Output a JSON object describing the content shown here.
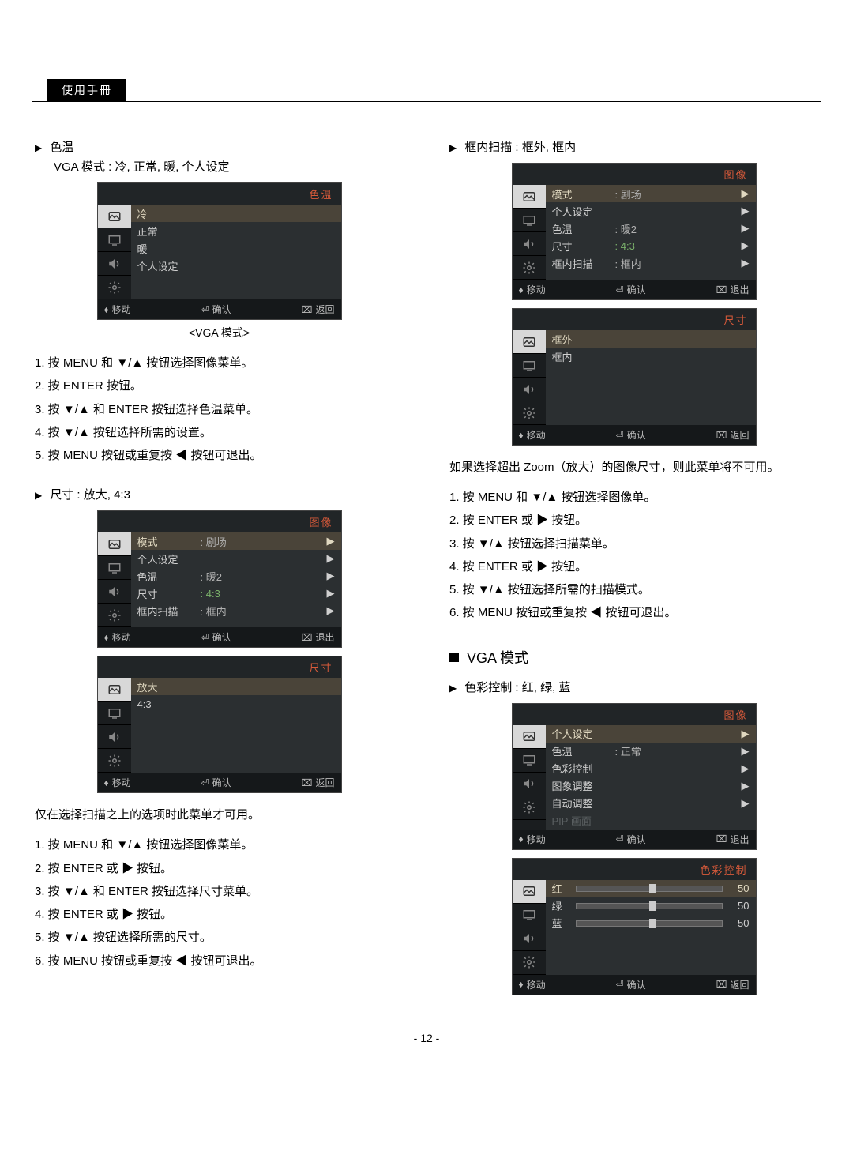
{
  "manual_label": "使用手冊",
  "page_number": "- 12 -",
  "col_left": {
    "sec1": {
      "bullet": "色温",
      "sub": "VGA 模式 : 冷, 正常, 暖, 个人设定",
      "osd": {
        "title": "色温",
        "rows": [
          "冷",
          "正常",
          "暖",
          "个人设定"
        ],
        "selected": 0,
        "footer": {
          "move": "移动",
          "ok": "确认",
          "back": "返回"
        }
      },
      "caption": "<VGA  模式>",
      "steps": [
        "1.  按 MENU 和 ▼/▲ 按钮选择图像菜单。",
        "2.  按 ENTER 按钮。",
        "3.  按 ▼/▲ 和 ENTER 按钮选择色温菜单。",
        "4.  按 ▼/▲ 按钮选择所需的设置。",
        "5.  按 MENU 按钮或重复按 ◀ 按钮可退出。"
      ]
    },
    "sec2": {
      "bullet": "尺寸 : 放大,  4:3",
      "osd_image": {
        "title": "图像",
        "rows": [
          {
            "lbl": "模式",
            "val": ":  剧场",
            "arrow": true,
            "sel": true
          },
          {
            "lbl": "个人设定",
            "val": "",
            "arrow": true
          },
          {
            "lbl": "色温",
            "val": ":  暖2",
            "arrow": true
          },
          {
            "lbl": "尺寸",
            "val": ":  4:3",
            "arrow": true,
            "green": true
          },
          {
            "lbl": "框内扫描",
            "val": ":  框内",
            "arrow": true
          }
        ],
        "footer": {
          "move": "移动",
          "ok": "确认",
          "back": "退出"
        }
      },
      "osd_size": {
        "title": "尺寸",
        "rows": [
          "放大",
          "4:3"
        ],
        "selected": 0,
        "footer": {
          "move": "移动",
          "ok": "确认",
          "back": "返回"
        }
      },
      "note": "仅在选择扫描之上的选项时此菜单才可用。",
      "steps": [
        "1.  按 MENU 和 ▼/▲ 按钮选择图像菜单。",
        "2.  按 ENTER 或 ▶ 按钮。",
        "3.  按 ▼/▲ 和 ENTER 按钮选择尺寸菜单。",
        "4.  按 ENTER 或 ▶ 按钮。",
        "5.  按 ▼/▲ 按钮选择所需的尺寸。",
        "6.  按 MENU 按钮或重复按 ◀ 按钮可退出。"
      ]
    }
  },
  "col_right": {
    "sec1": {
      "bullet": "框内扫描 : 框外, 框内",
      "osd_image": {
        "title": "图像",
        "rows": [
          {
            "lbl": "模式",
            "val": ":  剧场",
            "arrow": true,
            "sel": true
          },
          {
            "lbl": "个人设定",
            "val": "",
            "arrow": true
          },
          {
            "lbl": "色温",
            "val": ":  暖2",
            "arrow": true
          },
          {
            "lbl": "尺寸",
            "val": ":  4:3",
            "arrow": true,
            "green": true
          },
          {
            "lbl": "框内扫描",
            "val": ":  框内",
            "arrow": true
          }
        ],
        "footer": {
          "move": "移动",
          "ok": "确认",
          "back": "退出"
        }
      },
      "osd_scan": {
        "title": "尺寸",
        "rows": [
          "框外",
          "框内"
        ],
        "selected": 0,
        "footer": {
          "move": "移动",
          "ok": "确认",
          "back": "返回"
        }
      },
      "note": "如果选择超出 Zoom（放大）的图像尺寸，则此菜单将不可用。",
      "steps": [
        "1.  按 MENU 和 ▼/▲ 按钮选择图像单。",
        "2.  按 ENTER 或 ▶ 按钮。",
        "3.  按 ▼/▲ 按钮选择扫描菜单。",
        "4.  按 ENTER 或 ▶ 按钮。",
        "5.  按 ▼/▲ 按钮选择所需的扫描模式。",
        "6.  按 MENU 按钮或重复按 ◀ 按钮可退出。"
      ]
    },
    "vga_title": "VGA 模式",
    "sec2": {
      "bullet": "色彩控制 : 红, 绿, 蓝",
      "osd_image": {
        "title": "图像",
        "rows": [
          {
            "lbl": "个人设定",
            "val": "",
            "arrow": true,
            "sel": true
          },
          {
            "lbl": "色温",
            "val": ":  正常",
            "arrow": true
          },
          {
            "lbl": "色彩控制",
            "val": "",
            "arrow": true
          },
          {
            "lbl": "图象调整",
            "val": "",
            "arrow": true
          },
          {
            "lbl": "自动调整",
            "val": "",
            "arrow": true
          },
          {
            "lbl": "PIP 画面",
            "val": "",
            "arrow": false,
            "dim": true
          }
        ],
        "footer": {
          "move": "移动",
          "ok": "确认",
          "back": "退出"
        }
      },
      "osd_color": {
        "title": "色彩控制",
        "sliders": [
          {
            "lbl": "红",
            "val": 50,
            "sel": true
          },
          {
            "lbl": "绿",
            "val": 50
          },
          {
            "lbl": "蓝",
            "val": 50
          }
        ],
        "footer": {
          "move": "移动",
          "ok": "确认",
          "back": "返回"
        }
      }
    }
  },
  "icons": {
    "picture": "⍃",
    "display": "▭",
    "sound": "🔊",
    "setup": "✿"
  }
}
